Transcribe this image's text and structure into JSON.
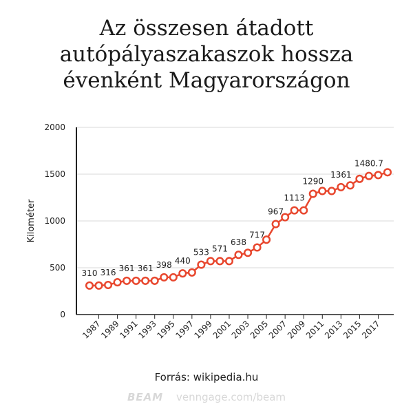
{
  "title_lines": [
    "Az összesen átadott",
    "autópályaszakaszok hossza",
    "évenként Magyarországon"
  ],
  "source": "Forrás: wikipedia.hu",
  "footer": {
    "brand": "BEAM",
    "url": "venngage.com/beam"
  },
  "colors": {
    "line": "#e8472e",
    "marker_fill": "#ffffff",
    "grid": "#d9d9d9",
    "axis": "#222222"
  },
  "chart_data": {
    "type": "line",
    "title": "Az összesen átadott autópályaszakaszok hossza évenként Magyarországon",
    "xlabel": "",
    "ylabel": "Kilométer",
    "ylim": [
      0,
      2000
    ],
    "yticks": [
      0,
      500,
      1000,
      1500,
      2000
    ],
    "xticks": [
      1987,
      1989,
      1991,
      1993,
      1995,
      1997,
      1999,
      2001,
      2003,
      2005,
      2007,
      2009,
      2011,
      2013,
      2015,
      2017
    ],
    "grid": true,
    "x": [
      1986,
      1987,
      1988,
      1989,
      1990,
      1991,
      1992,
      1993,
      1994,
      1995,
      1996,
      1997,
      1998,
      1999,
      2000,
      2001,
      2002,
      2003,
      2004,
      2005,
      2006,
      2007,
      2008,
      2009,
      2010,
      2011,
      2012,
      2013,
      2014,
      2015,
      2016,
      2017,
      2018
    ],
    "values": [
      310,
      310,
      316,
      345,
      361,
      361,
      361,
      361,
      398,
      398,
      440,
      450,
      533,
      571,
      571,
      571,
      638,
      660,
      717,
      800,
      967,
      1040,
      1113,
      1113,
      1290,
      1320,
      1320,
      1361,
      1380,
      1450,
      1480.7,
      1490,
      1520
    ],
    "data_labels": [
      {
        "x": 1986,
        "text": "310"
      },
      {
        "x": 1988,
        "text": "316"
      },
      {
        "x": 1990,
        "text": "361"
      },
      {
        "x": 1992,
        "text": "361"
      },
      {
        "x": 1994,
        "text": "398"
      },
      {
        "x": 1996,
        "text": "440"
      },
      {
        "x": 1998,
        "text": "533"
      },
      {
        "x": 2000,
        "text": "571"
      },
      {
        "x": 2002,
        "text": "638"
      },
      {
        "x": 2004,
        "text": "717"
      },
      {
        "x": 2006,
        "text": "967"
      },
      {
        "x": 2008,
        "text": "1113"
      },
      {
        "x": 2010,
        "text": "1290"
      },
      {
        "x": 2013,
        "text": "1361"
      },
      {
        "x": 2016,
        "text": "1480.7"
      }
    ]
  }
}
